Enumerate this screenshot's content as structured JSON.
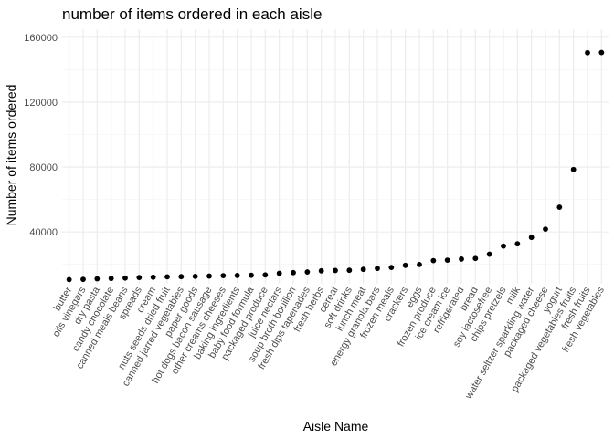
{
  "chart_data": {
    "type": "scatter",
    "title": "number of items ordered in each aisle",
    "xlabel": "Aisle Name",
    "ylabel": "Number of items ordered",
    "ylim": [
      8000,
      165000
    ],
    "y_ticks": [
      40000,
      80000,
      120000,
      160000
    ],
    "y_tick_labels": [
      "40000",
      "80000",
      "120000",
      "160000"
    ],
    "grid": true,
    "legend": "none",
    "point_color": "#000000",
    "categories": [
      "butter",
      "oils vinegars",
      "dry pasta",
      "candy chocolate",
      "canned meals beans",
      "spreads",
      "cream",
      "nuts seeds dried fruit",
      "canned jarred vegetables",
      "paper goods",
      "hot dogs bacon sausage",
      "other creams cheeses",
      "baking ingredients",
      "baby food formula",
      "packaged produce",
      "juice nectars",
      "soup broth bouillon",
      "fresh dips tapenades",
      "fresh herbs",
      "cereal",
      "soft drinks",
      "lunch meat",
      "energy granola bars",
      "frozen meals",
      "crackers",
      "eggs",
      "frozen produce",
      "ice cream ice",
      "refrigerated",
      "bread",
      "soy lactosefree",
      "chips pretzels",
      "milk",
      "water seltzer sparkling water",
      "packaged cheese",
      "yogurt",
      "packaged vegetables fruits",
      "fresh fruits",
      "fresh vegetables"
    ],
    "values": [
      10575,
      10735,
      11080,
      11280,
      11535,
      11865,
      12050,
      12290,
      12390,
      12570,
      12755,
      13010,
      13090,
      13245,
      13465,
      14445,
      14880,
      15285,
      15975,
      16200,
      16325,
      16895,
      17480,
      18055,
      19360,
      19875,
      22275,
      22570,
      23230,
      23635,
      26240,
      31265,
      32645,
      36620,
      41700,
      55240,
      78495,
      150475,
      150610
    ]
  }
}
